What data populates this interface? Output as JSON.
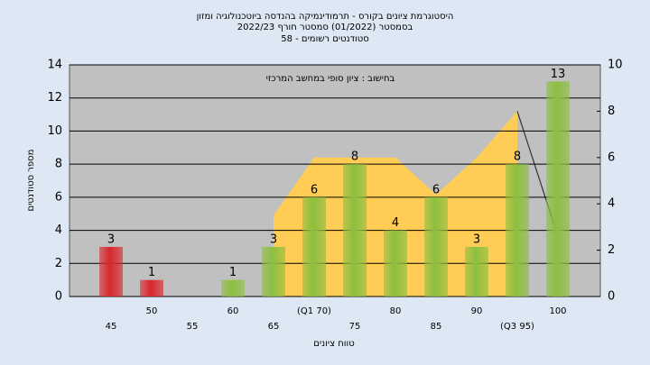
{
  "chart_data": {
    "type": "bar",
    "title": "היסטוגרמת ציונים בקורס - תרמודינמיקה בהנדסה ביוטכנולוגיה ומזון",
    "subtitle": "בסמסטר (01/2022) סמסטר חורף 2022/23",
    "subtitle2": "סטודנטים רשומים - 58",
    "annotation": "בחישוב : ציון סופי במחשב המרכזי",
    "ylabel": "מספר סטודנטים",
    "xlabel": "טווח ציונים",
    "categories": [
      "45",
      "50",
      "55",
      "60",
      "65",
      "(Q1 70)",
      "75",
      "80",
      "85",
      "90",
      "(Q3 95)",
      "100"
    ],
    "values": [
      3,
      1,
      null,
      1,
      3,
      6,
      8,
      4,
      6,
      3,
      8,
      13
    ],
    "colors": [
      "#d9262b",
      "#d9262b",
      "#8cbf3f",
      "#8cbf3f",
      "#8cbf3f",
      "#8cbf3f",
      "#8cbf3f",
      "#8cbf3f",
      "#8cbf3f",
      "#8cbf3f",
      "#8cbf3f",
      "#8cbf3f"
    ],
    "series": [
      {
        "type": "area",
        "color": "#ffcc55",
        "axis": "y2",
        "values": [
          null,
          null,
          null,
          null,
          3.5,
          6,
          6,
          6,
          4.4,
          6,
          8,
          null
        ]
      },
      {
        "type": "line",
        "color": "#333333",
        "axis": "y2",
        "values": [
          null,
          null,
          null,
          null,
          null,
          null,
          null,
          null,
          null,
          null,
          8,
          2.6
        ]
      }
    ],
    "ylim": [
      0,
      14
    ],
    "yticks": [
      0,
      2,
      4,
      6,
      8,
      10,
      12,
      14
    ],
    "y2lim": [
      0,
      10
    ],
    "y2ticks": [
      0,
      2,
      4,
      6,
      8,
      10
    ],
    "grid": true
  }
}
